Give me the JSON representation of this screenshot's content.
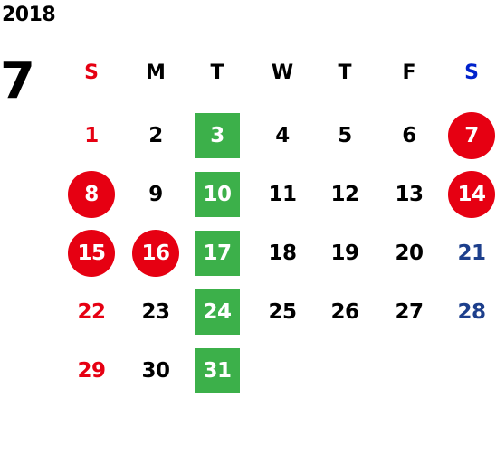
{
  "year": "2018",
  "month": "7",
  "weekdays": [
    {
      "label": "S",
      "color": "#e60012"
    },
    {
      "label": "M",
      "color": "#000000"
    },
    {
      "label": "T",
      "color": "#000000"
    },
    {
      "label": "W",
      "color": "#000000"
    },
    {
      "label": "T",
      "color": "#000000"
    },
    {
      "label": "F",
      "color": "#000000"
    },
    {
      "label": "S",
      "color": "#0022cc"
    }
  ],
  "weeks": [
    [
      {
        "day": "1",
        "style": "sun"
      },
      {
        "day": "2",
        "style": ""
      },
      {
        "day": "3",
        "style": "highlight"
      },
      {
        "day": "4",
        "style": ""
      },
      {
        "day": "5",
        "style": ""
      },
      {
        "day": "6",
        "style": ""
      },
      {
        "day": "7",
        "style": "holiday"
      }
    ],
    [
      {
        "day": "8",
        "style": "holiday"
      },
      {
        "day": "9",
        "style": ""
      },
      {
        "day": "10",
        "style": "highlight"
      },
      {
        "day": "11",
        "style": ""
      },
      {
        "day": "12",
        "style": ""
      },
      {
        "day": "13",
        "style": ""
      },
      {
        "day": "14",
        "style": "holiday"
      }
    ],
    [
      {
        "day": "15",
        "style": "holiday"
      },
      {
        "day": "16",
        "style": "holiday"
      },
      {
        "day": "17",
        "style": "highlight"
      },
      {
        "day": "18",
        "style": ""
      },
      {
        "day": "19",
        "style": ""
      },
      {
        "day": "20",
        "style": ""
      },
      {
        "day": "21",
        "style": "sat"
      }
    ],
    [
      {
        "day": "22",
        "style": "sun"
      },
      {
        "day": "23",
        "style": ""
      },
      {
        "day": "24",
        "style": "highlight"
      },
      {
        "day": "25",
        "style": ""
      },
      {
        "day": "26",
        "style": ""
      },
      {
        "day": "27",
        "style": ""
      },
      {
        "day": "28",
        "style": "sat"
      }
    ],
    [
      {
        "day": "29",
        "style": "sun"
      },
      {
        "day": "30",
        "style": ""
      },
      {
        "day": "31",
        "style": "highlight"
      }
    ]
  ],
  "colors": {
    "holiday_red": "#e60012",
    "highlight_green": "#3cb04a",
    "saturday_blue": "#1d3f8c",
    "sunday_red": "#e60012"
  }
}
